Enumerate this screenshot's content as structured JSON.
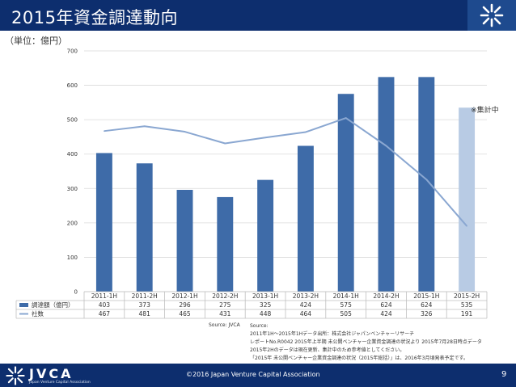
{
  "slide": {
    "title": "2015年資金調達動向",
    "unit_label": "（単位：億円）",
    "page_number": "9",
    "copyright": "©2016 Japan Venture Capital Association",
    "brand": "JVCA",
    "brand_sub": "Japan Venture Capital Association",
    "colors": {
      "header": "#0d2e6e",
      "bar": "#3e6ba8",
      "bar_highlight": "#b8cbe4",
      "line": "#8aa7d1"
    }
  },
  "source": {
    "label": "Source: JVCA",
    "lines": [
      "Source:",
      "2011年1H～2015年1Hデータ出所：株式会社ジャパンベンチャーリサーチ",
      "レポートNo.R0042 2015年上半期 未公開ベンチャー企業資金調達の状況より 2015年7月28日時点データ",
      "2015年2Hのデータは現在更新、集計中のため参考値としてください。",
      "「2015年 未公開ベンチャー企業資金調達の状況（2015年総括）」は、2016年3月頃発表予定です。"
    ]
  },
  "chart_data": {
    "type": "bar",
    "categories": [
      "2011-1H",
      "2011-2H",
      "2012-1H",
      "2012-2H",
      "2013-1H",
      "2013-2H",
      "2014-1H",
      "2014-2H",
      "2015-1H",
      "2015-2H"
    ],
    "series": [
      {
        "name": "調達額（億円）",
        "type": "bar",
        "values": [
          403,
          373,
          296,
          275,
          325,
          424,
          575,
          624,
          624,
          535
        ]
      },
      {
        "name": "社数",
        "type": "line",
        "values": [
          467,
          481,
          465,
          431,
          448,
          464,
          505,
          424,
          326,
          191
        ]
      }
    ],
    "yticks": [
      0,
      100,
      200,
      300,
      400,
      500,
      600,
      700
    ],
    "ylim": [
      0,
      700
    ],
    "grid": true,
    "highlight_category": "2015-2H",
    "annotation": "※集計中",
    "data_table": true
  }
}
